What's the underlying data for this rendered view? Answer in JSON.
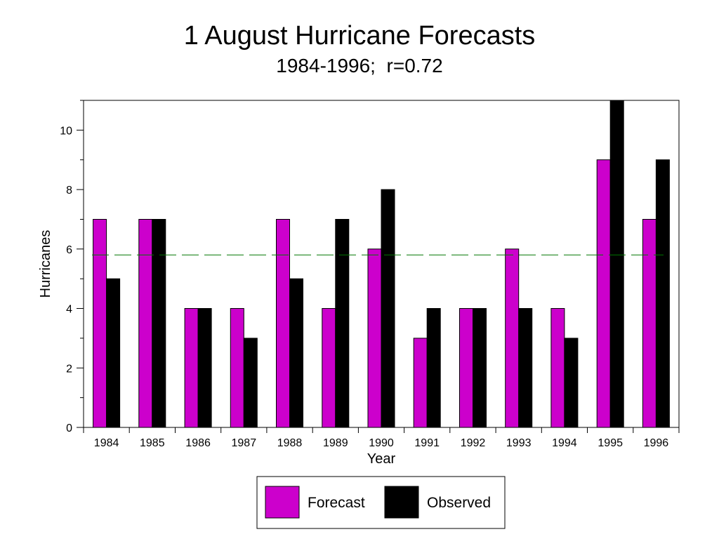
{
  "chart_data": {
    "type": "bar",
    "title": "1 August Hurricane Forecasts",
    "subtitle": "1984-1996;  r=0.72",
    "xlabel": "Year",
    "ylabel": "Hurricanes",
    "categories": [
      "1984",
      "1985",
      "1986",
      "1987",
      "1988",
      "1989",
      "1990",
      "1991",
      "1992",
      "1993",
      "1994",
      "1995",
      "1996"
    ],
    "series": [
      {
        "name": "Forecast",
        "color": "#cc00cc",
        "values": [
          7,
          7,
          4,
          4,
          7,
          4,
          6,
          3,
          4,
          6,
          4,
          9,
          7
        ]
      },
      {
        "name": "Observed",
        "color": "#000000",
        "values": [
          5,
          7,
          4,
          3,
          5,
          7,
          8,
          4,
          4,
          4,
          3,
          11,
          9
        ]
      }
    ],
    "ylim": [
      0,
      11
    ],
    "yticks": [
      "0",
      "2",
      "4",
      "6",
      "8",
      "10"
    ],
    "reference_line": {
      "value": 5.8,
      "color": "#007700",
      "style": "dashed"
    },
    "grid": false,
    "legend_position": "bottom-center"
  }
}
